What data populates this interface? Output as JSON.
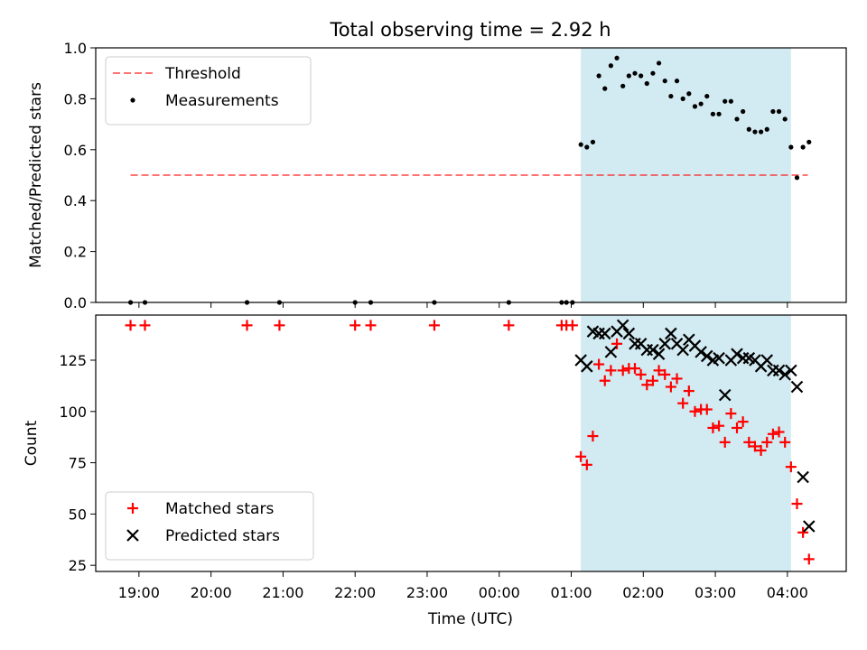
{
  "chart_data": [
    {
      "type": "scatter",
      "title": "Total observing time = 2.92 h",
      "ylabel": "Matched/Predicted stars",
      "xlabel": "",
      "ylim": [
        0,
        1.0
      ],
      "yticks": [
        "0.0",
        "0.2",
        "0.4",
        "0.6",
        "0.8",
        "1.0"
      ],
      "ytick_values": [
        0,
        0.2,
        0.4,
        0.6,
        0.8,
        1.0
      ],
      "grid": false,
      "legend_position": "upper-left",
      "shaded_region": {
        "start": "01:08",
        "end": "04:03",
        "color": "#add8e6"
      },
      "threshold": {
        "name": "Threshold",
        "value": 0.5,
        "x_start": "18:53",
        "x_end": "04:17",
        "color": "#ff0000"
      },
      "series": [
        {
          "name": "Measurements",
          "color": "#000000",
          "marker": "dot",
          "points": [
            [
              "18:53",
              0
            ],
            [
              "19:05",
              0
            ],
            [
              "20:30",
              0
            ],
            [
              "20:57",
              0
            ],
            [
              "22:00",
              0
            ],
            [
              "22:13",
              0
            ],
            [
              "23:06",
              0
            ],
            [
              "00:08",
              0
            ],
            [
              "00:52",
              0
            ],
            [
              "00:56",
              0
            ],
            [
              "01:01",
              0
            ],
            [
              "01:08",
              0.62
            ],
            [
              "01:13",
              0.61
            ],
            [
              "01:18",
              0.63
            ],
            [
              "01:23",
              0.89
            ],
            [
              "01:28",
              0.84
            ],
            [
              "01:33",
              0.93
            ],
            [
              "01:38",
              0.96
            ],
            [
              "01:43",
              0.85
            ],
            [
              "01:48",
              0.89
            ],
            [
              "01:53",
              0.9
            ],
            [
              "01:58",
              0.89
            ],
            [
              "02:03",
              0.86
            ],
            [
              "02:08",
              0.9
            ],
            [
              "02:13",
              0.94
            ],
            [
              "02:18",
              0.87
            ],
            [
              "02:23",
              0.81
            ],
            [
              "02:28",
              0.87
            ],
            [
              "02:33",
              0.8
            ],
            [
              "02:38",
              0.82
            ],
            [
              "02:43",
              0.77
            ],
            [
              "02:48",
              0.78
            ],
            [
              "02:53",
              0.81
            ],
            [
              "02:58",
              0.74
            ],
            [
              "03:03",
              0.74
            ],
            [
              "03:08",
              0.79
            ],
            [
              "03:13",
              0.79
            ],
            [
              "03:18",
              0.72
            ],
            [
              "03:23",
              0.75
            ],
            [
              "03:28",
              0.68
            ],
            [
              "03:33",
              0.67
            ],
            [
              "03:38",
              0.67
            ],
            [
              "03:43",
              0.68
            ],
            [
              "03:48",
              0.75
            ],
            [
              "03:53",
              0.75
            ],
            [
              "03:58",
              0.72
            ],
            [
              "04:03",
              0.61
            ],
            [
              "04:08",
              0.49
            ],
            [
              "04:13",
              0.61
            ],
            [
              "04:18",
              0.63
            ]
          ]
        }
      ]
    },
    {
      "type": "scatter",
      "title": "",
      "ylabel": "Count",
      "xlabel": "Time (UTC)",
      "ylim": [
        22,
        147
      ],
      "yticks": [
        "25",
        "50",
        "75",
        "100",
        "125"
      ],
      "ytick_values": [
        25,
        50,
        75,
        100,
        125
      ],
      "xticks": [
        "19:00",
        "20:00",
        "21:00",
        "22:00",
        "23:00",
        "00:00",
        "01:00",
        "02:00",
        "03:00",
        "04:00"
      ],
      "grid": false,
      "legend_position": "lower-left",
      "shaded_region": {
        "start": "01:08",
        "end": "04:03",
        "color": "#add8e6"
      },
      "series": [
        {
          "name": "Matched stars",
          "color": "#ff0000",
          "marker": "plus",
          "points": [
            [
              "18:53",
              142
            ],
            [
              "19:05",
              142
            ],
            [
              "20:30",
              142
            ],
            [
              "20:57",
              142
            ],
            [
              "22:00",
              142
            ],
            [
              "22:13",
              142
            ],
            [
              "23:06",
              142
            ],
            [
              "00:08",
              142
            ],
            [
              "00:52",
              142
            ],
            [
              "00:56",
              142
            ],
            [
              "01:01",
              142
            ],
            [
              "01:08",
              78
            ],
            [
              "01:13",
              74
            ],
            [
              "01:18",
              88
            ],
            [
              "01:23",
              123
            ],
            [
              "01:28",
              115
            ],
            [
              "01:33",
              120
            ],
            [
              "01:38",
              133
            ],
            [
              "01:43",
              120
            ],
            [
              "01:48",
              121
            ],
            [
              "01:53",
              121
            ],
            [
              "01:58",
              118
            ],
            [
              "02:03",
              113
            ],
            [
              "02:08",
              115
            ],
            [
              "02:13",
              120
            ],
            [
              "02:18",
              118
            ],
            [
              "02:23",
              112
            ],
            [
              "02:28",
              116
            ],
            [
              "02:33",
              104
            ],
            [
              "02:38",
              110
            ],
            [
              "02:43",
              100
            ],
            [
              "02:48",
              101
            ],
            [
              "02:53",
              101
            ],
            [
              "02:58",
              92
            ],
            [
              "03:03",
              93
            ],
            [
              "03:08",
              85
            ],
            [
              "03:13",
              99
            ],
            [
              "03:18",
              92
            ],
            [
              "03:23",
              95
            ],
            [
              "03:28",
              85
            ],
            [
              "03:33",
              83
            ],
            [
              "03:38",
              81
            ],
            [
              "03:43",
              85
            ],
            [
              "03:48",
              89
            ],
            [
              "03:53",
              90
            ],
            [
              "03:58",
              85
            ],
            [
              "04:03",
              73
            ],
            [
              "04:08",
              55
            ],
            [
              "04:13",
              41
            ],
            [
              "04:18",
              28
            ]
          ]
        },
        {
          "name": "Predicted stars",
          "color": "#000000",
          "marker": "x",
          "points": [
            [
              "01:08",
              125
            ],
            [
              "01:13",
              122
            ],
            [
              "01:18",
              139
            ],
            [
              "01:23",
              138
            ],
            [
              "01:28",
              138
            ],
            [
              "01:33",
              129
            ],
            [
              "01:38",
              139
            ],
            [
              "01:43",
              142
            ],
            [
              "01:48",
              138
            ],
            [
              "01:53",
              133
            ],
            [
              "01:58",
              133
            ],
            [
              "02:03",
              130
            ],
            [
              "02:08",
              130
            ],
            [
              "02:13",
              128
            ],
            [
              "02:18",
              133
            ],
            [
              "02:23",
              138
            ],
            [
              "02:28",
              133
            ],
            [
              "02:33",
              130
            ],
            [
              "02:38",
              135
            ],
            [
              "02:43",
              132
            ],
            [
              "02:48",
              129
            ],
            [
              "02:53",
              127
            ],
            [
              "02:58",
              125
            ],
            [
              "03:03",
              126
            ],
            [
              "03:08",
              108
            ],
            [
              "03:13",
              125
            ],
            [
              "03:18",
              128
            ],
            [
              "03:23",
              126
            ],
            [
              "03:28",
              126
            ],
            [
              "03:33",
              125
            ],
            [
              "03:38",
              122
            ],
            [
              "03:43",
              125
            ],
            [
              "03:48",
              120
            ],
            [
              "03:53",
              120
            ],
            [
              "03:58",
              118
            ],
            [
              "04:03",
              120
            ],
            [
              "04:08",
              112
            ],
            [
              "04:13",
              68
            ],
            [
              "04:18",
              44
            ]
          ]
        }
      ]
    }
  ]
}
